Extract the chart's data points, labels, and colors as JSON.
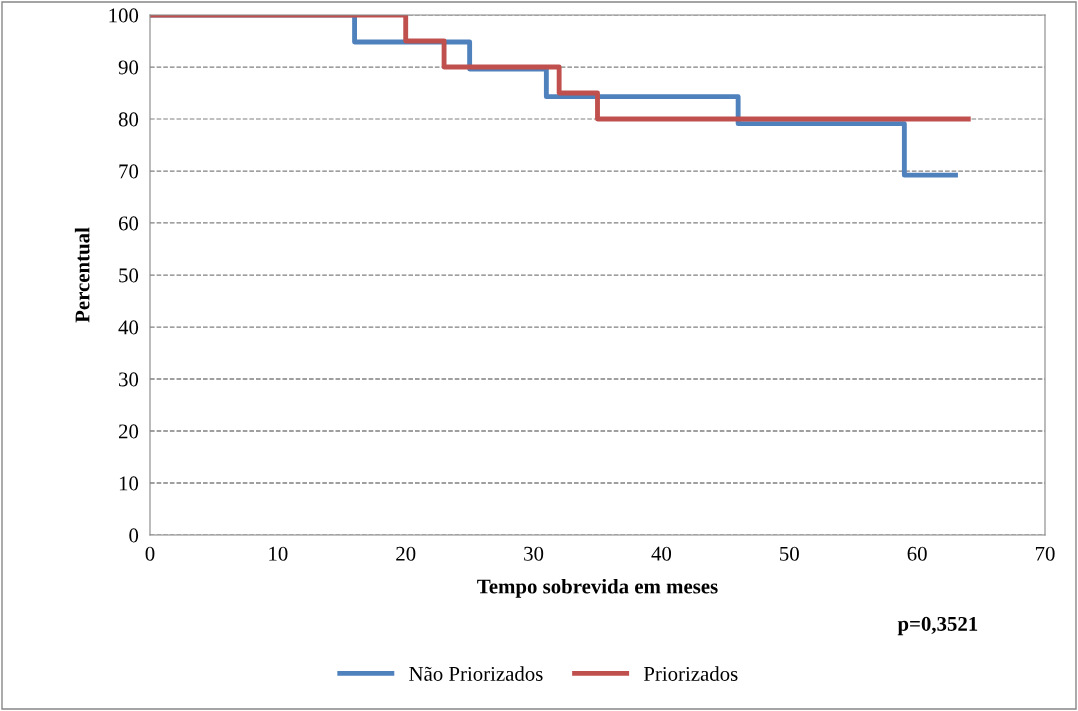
{
  "chart_data": {
    "type": "step",
    "xlabel": "Tempo sobrevida em meses",
    "ylabel": "Percentual",
    "series": [
      {
        "name": "Não Priorizados",
        "color": "#4f81bd",
        "x": [
          0,
          16,
          25,
          31,
          46,
          59,
          63
        ],
        "values": [
          100,
          94.8,
          89.6,
          84.3,
          79.1,
          69.2,
          69.2
        ]
      },
      {
        "name": "Priorizados",
        "color": "#c0504d",
        "x": [
          0,
          20,
          23,
          32,
          35,
          64
        ],
        "values": [
          100,
          95,
          90,
          85,
          80,
          80
        ]
      }
    ],
    "xlim": [
      0,
      70
    ],
    "xticks": [
      0,
      10,
      20,
      30,
      40,
      50,
      60,
      70
    ],
    "ylim": [
      0,
      100
    ],
    "yticks": [
      0,
      10,
      20,
      30,
      40,
      50,
      60,
      70,
      80,
      90,
      100
    ],
    "grid": "y",
    "legend": "bottom",
    "line_style": "solid",
    "marker": "none",
    "annotations": [
      "p=0,3521"
    ]
  }
}
